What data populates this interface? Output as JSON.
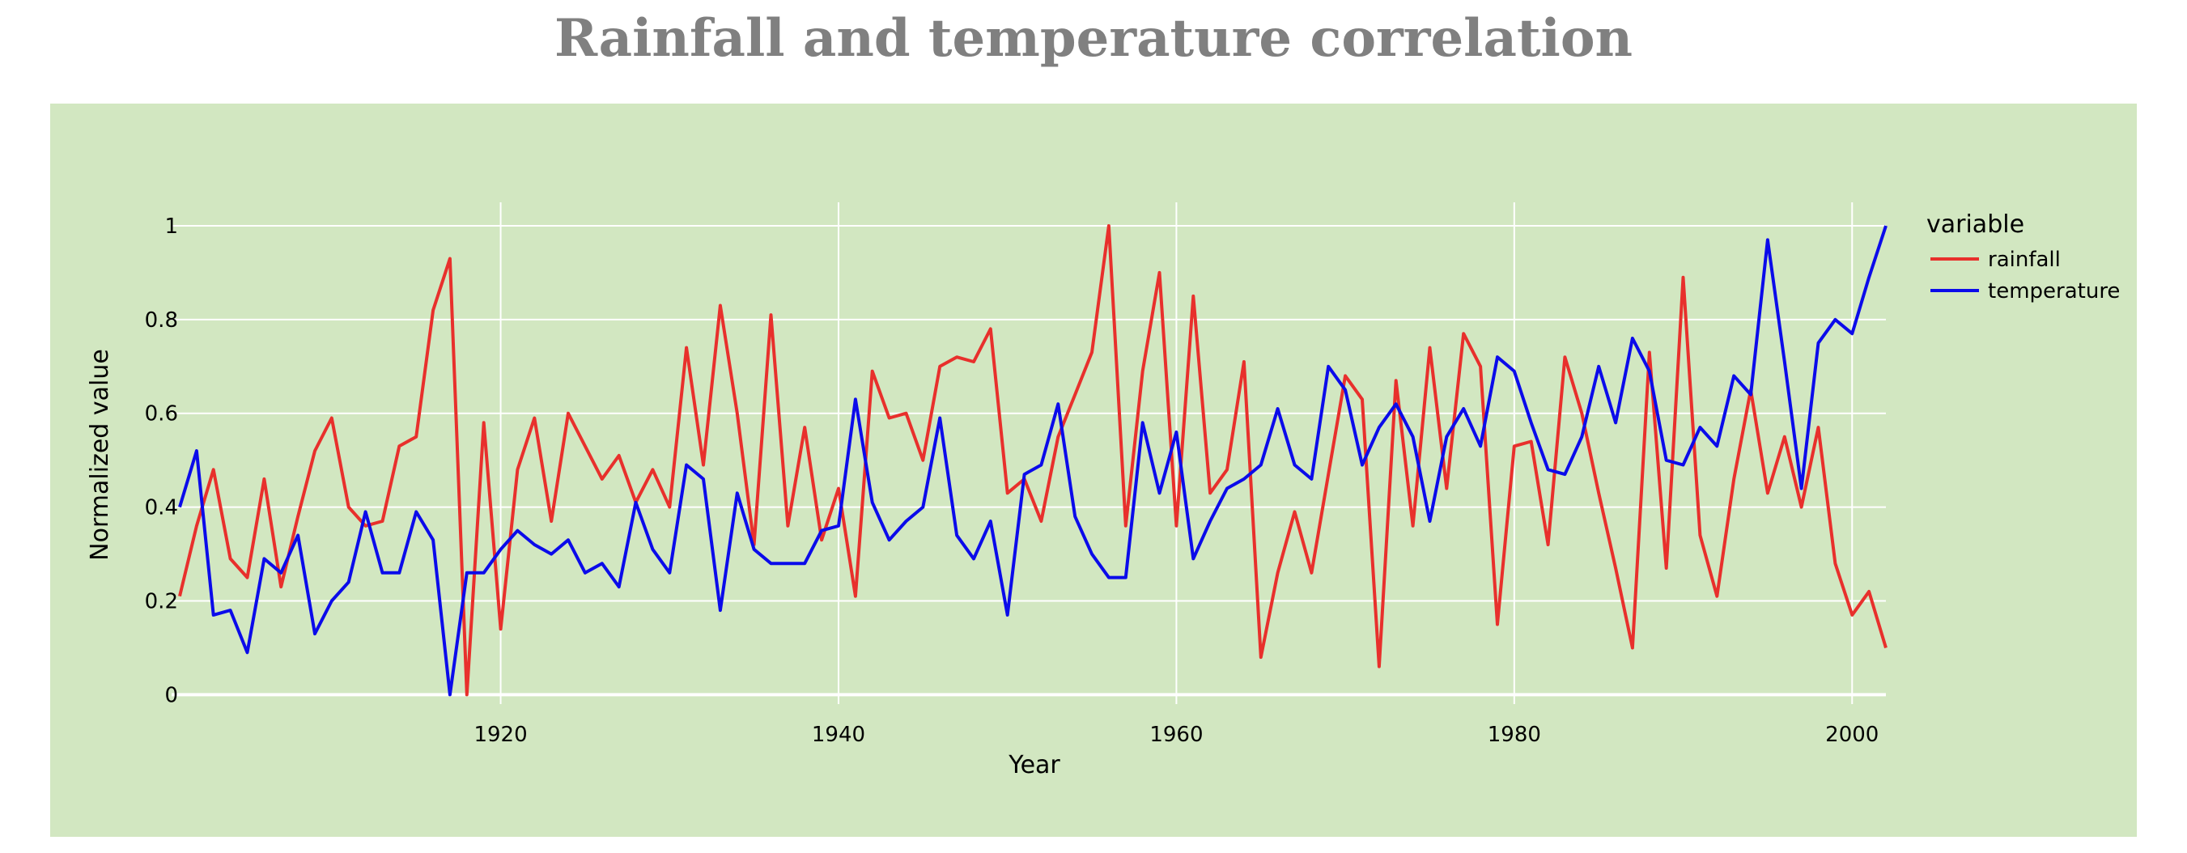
{
  "chart_data": {
    "type": "line",
    "title": "Rainfall and temperature correlation",
    "xlabel": "Year",
    "ylabel": "Normalized value",
    "xlim": [
      1901,
      2002
    ],
    "ylim": [
      -0.02,
      1.05
    ],
    "x_ticks": [
      1920,
      1940,
      1960,
      1980,
      2000
    ],
    "x_tick_labels": [
      "1920",
      "1940",
      "1960",
      "1980",
      "2000"
    ],
    "y_ticks": [
      0,
      0.2,
      0.4,
      0.6,
      0.8,
      1
    ],
    "y_tick_labels": [
      "0",
      "0.2",
      "0.4",
      "0.6",
      "0.8",
      "1"
    ],
    "grid": true,
    "legend_position": "top-right",
    "legend_title": "variable",
    "plot_background": "#d2e7c1",
    "x": [
      1901,
      1902,
      1903,
      1904,
      1905,
      1906,
      1907,
      1908,
      1909,
      1910,
      1911,
      1912,
      1913,
      1914,
      1915,
      1916,
      1917,
      1918,
      1919,
      1920,
      1921,
      1922,
      1923,
      1924,
      1925,
      1926,
      1927,
      1928,
      1929,
      1930,
      1931,
      1932,
      1933,
      1934,
      1935,
      1936,
      1937,
      1938,
      1939,
      1940,
      1941,
      1942,
      1943,
      1944,
      1945,
      1946,
      1947,
      1948,
      1949,
      1950,
      1951,
      1952,
      1953,
      1954,
      1955,
      1956,
      1957,
      1958,
      1959,
      1960,
      1961,
      1962,
      1963,
      1964,
      1965,
      1966,
      1967,
      1968,
      1969,
      1970,
      1971,
      1972,
      1973,
      1974,
      1975,
      1976,
      1977,
      1978,
      1979,
      1980,
      1981,
      1982,
      1983,
      1984,
      1985,
      1986,
      1987,
      1988,
      1989,
      1990,
      1991,
      1992,
      1993,
      1994,
      1995,
      1996,
      1997,
      1998,
      1999,
      2000,
      2001,
      2002
    ],
    "series": [
      {
        "name": "rainfall",
        "color": "#e8302c",
        "values": [
          0.21,
          0.36,
          0.48,
          0.29,
          0.25,
          0.46,
          0.23,
          0.38,
          0.52,
          0.59,
          0.4,
          0.36,
          0.37,
          0.53,
          0.55,
          0.82,
          0.93,
          0.0,
          0.58,
          0.14,
          0.48,
          0.59,
          0.37,
          0.6,
          0.53,
          0.46,
          0.51,
          0.41,
          0.48,
          0.4,
          0.74,
          0.49,
          0.83,
          0.6,
          0.32,
          0.81,
          0.36,
          0.57,
          0.33,
          0.44,
          0.21,
          0.69,
          0.59,
          0.6,
          0.5,
          0.7,
          0.72,
          0.71,
          0.78,
          0.43,
          0.46,
          0.37,
          0.55,
          0.64,
          0.73,
          1.0,
          0.36,
          0.69,
          0.9,
          0.36,
          0.85,
          0.43,
          0.48,
          0.71,
          0.08,
          0.26,
          0.39,
          0.26,
          0.47,
          0.68,
          0.63,
          0.06,
          0.67,
          0.36,
          0.74,
          0.44,
          0.77,
          0.7,
          0.15,
          0.53,
          0.54,
          0.32,
          0.72,
          0.6,
          0.43,
          0.27,
          0.1,
          0.73,
          0.27,
          0.89,
          0.34,
          0.21,
          0.46,
          0.65,
          0.43,
          0.55,
          0.4,
          0.57,
          0.28,
          0.17,
          0.22,
          0.1
        ]
      },
      {
        "name": "temperature",
        "color": "#0b0bea",
        "values": [
          0.4,
          0.52,
          0.17,
          0.18,
          0.09,
          0.29,
          0.26,
          0.34,
          0.13,
          0.2,
          0.24,
          0.39,
          0.26,
          0.26,
          0.39,
          0.33,
          0.0,
          0.26,
          0.26,
          0.31,
          0.35,
          0.32,
          0.3,
          0.33,
          0.26,
          0.28,
          0.23,
          0.41,
          0.31,
          0.26,
          0.49,
          0.46,
          0.18,
          0.43,
          0.31,
          0.28,
          0.28,
          0.28,
          0.35,
          0.36,
          0.63,
          0.41,
          0.33,
          0.37,
          0.4,
          0.59,
          0.34,
          0.29,
          0.37,
          0.17,
          0.47,
          0.49,
          0.62,
          0.38,
          0.3,
          0.25,
          0.25,
          0.58,
          0.43,
          0.56,
          0.29,
          0.37,
          0.44,
          0.46,
          0.49,
          0.61,
          0.49,
          0.46,
          0.7,
          0.65,
          0.49,
          0.57,
          0.62,
          0.55,
          0.37,
          0.55,
          0.61,
          0.53,
          0.72,
          0.69,
          0.58,
          0.48,
          0.47,
          0.55,
          0.7,
          0.58,
          0.76,
          0.69,
          0.5,
          0.49,
          0.57,
          0.53,
          0.68,
          0.64,
          0.97,
          0.71,
          0.44,
          0.75,
          0.8,
          0.77,
          0.89,
          1.0
        ]
      }
    ]
  }
}
